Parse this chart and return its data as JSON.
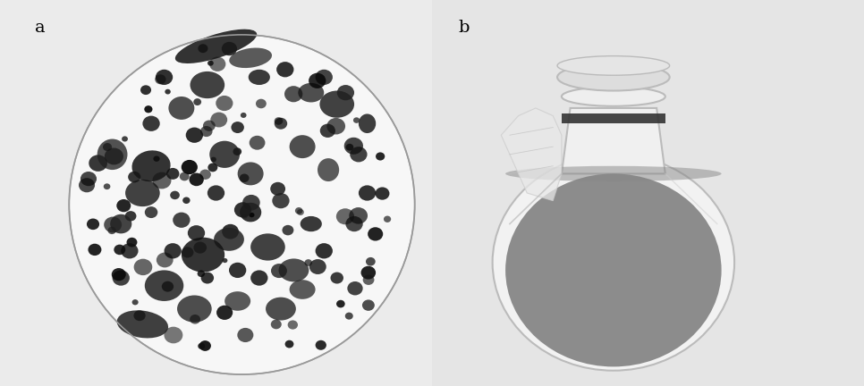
{
  "fig_width": 9.66,
  "fig_height": 4.32,
  "dpi": 100,
  "bg_color": "#e8e8e8",
  "panel_bg": "#e0e0e0",
  "label_a": "a",
  "label_b": "b",
  "label_fontsize": 14,
  "dish_face": "#f8f8f8",
  "dish_edge": "#999999",
  "flask_glass": "#f0f0f0",
  "flask_liquid": "#7a7a7a",
  "flask_edge": "#aaaaaa"
}
